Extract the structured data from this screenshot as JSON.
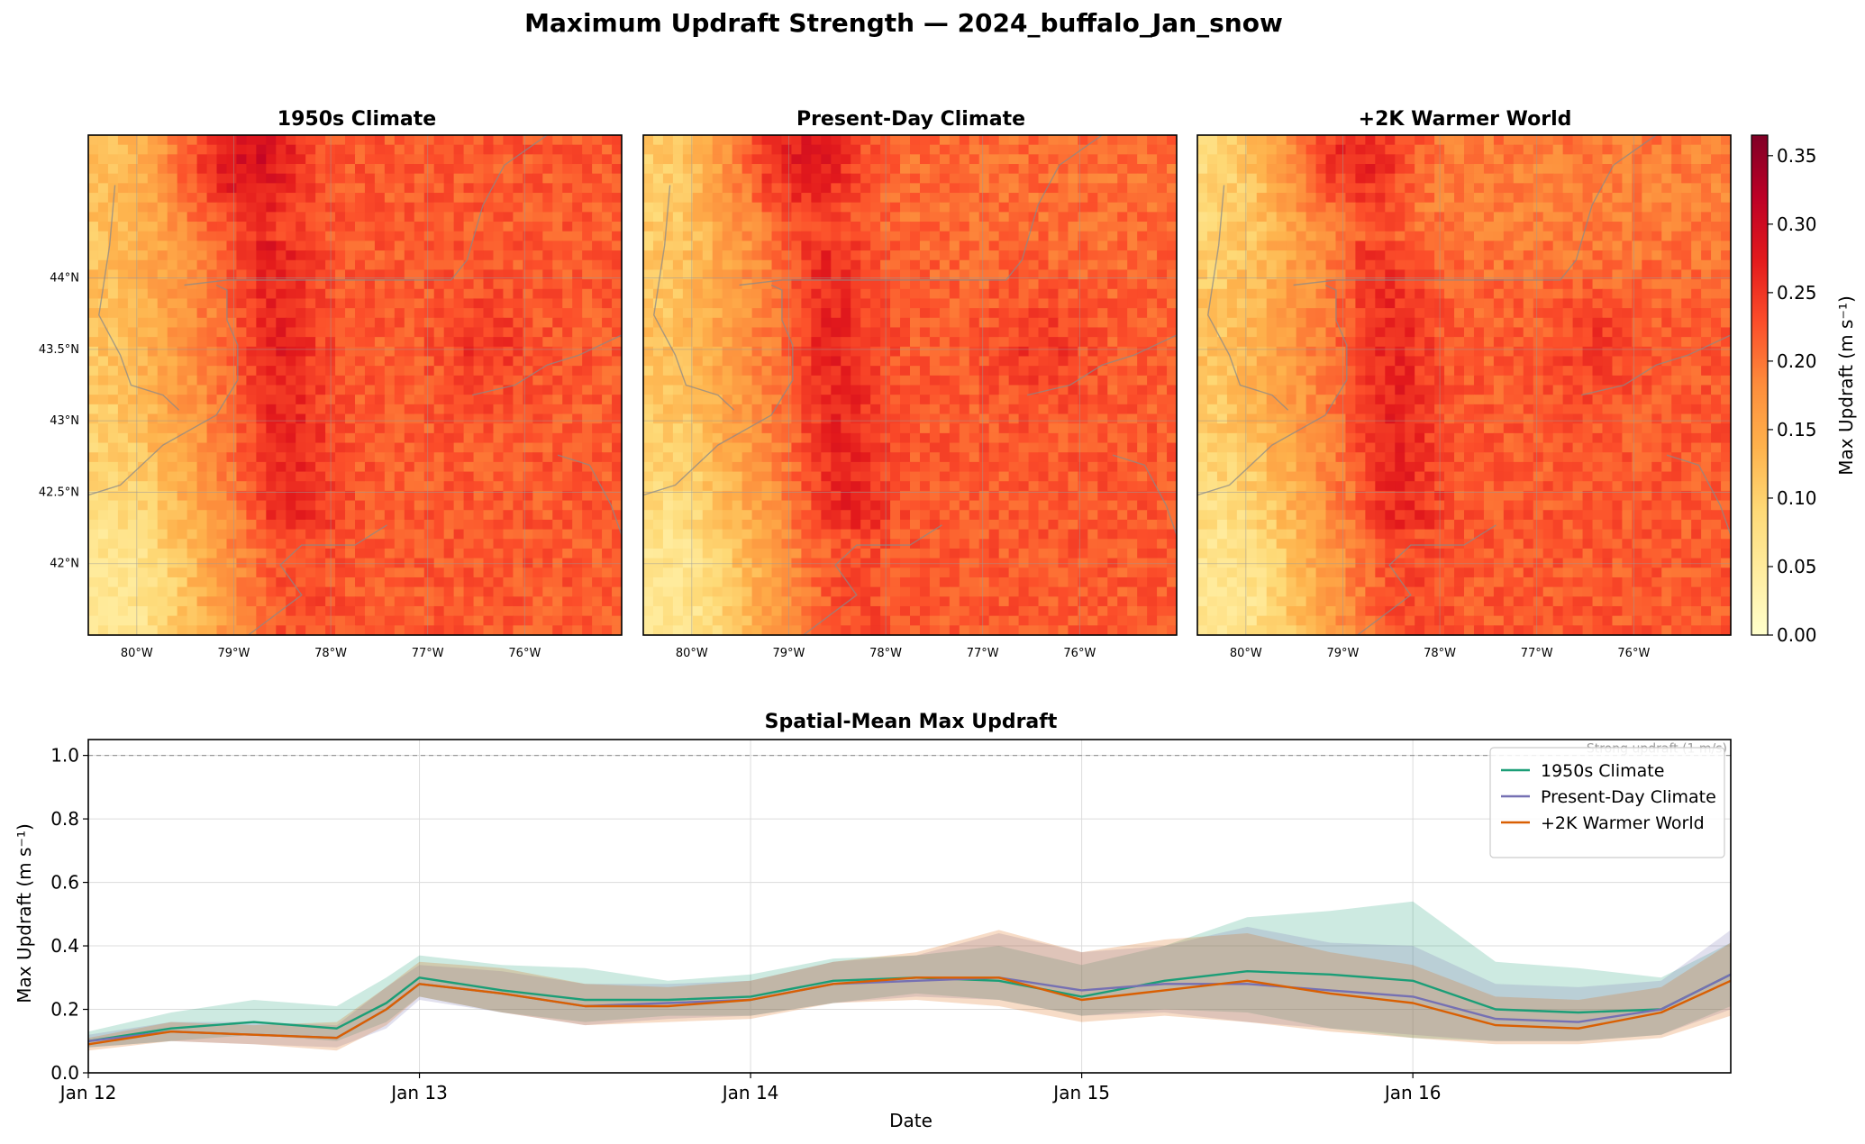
{
  "figure": {
    "title": "Maximum Updraft Strength — 2024_buffalo_Jan_snow"
  },
  "maps": {
    "panels": [
      {
        "title": "1950s Climate",
        "variant": 0
      },
      {
        "title": "Present-Day Climate",
        "variant": 1
      },
      {
        "title": "+2K Warmer World",
        "variant": 2
      }
    ],
    "lon_ticks": [
      "80°W",
      "79°W",
      "78°W",
      "77°W",
      "76°W"
    ],
    "lon_tick_values": [
      -80,
      -79,
      -78,
      -77,
      -76
    ],
    "lat_ticks": [
      "44°N",
      "43.5°N",
      "43°N",
      "42.5°N",
      "42°N"
    ],
    "lat_tick_values": [
      44,
      43.5,
      43,
      42.5,
      42
    ],
    "lon_range": [
      -80.5,
      -75.0
    ],
    "lat_range": [
      41.5,
      45.0
    ],
    "colorbar": {
      "label": "Max Updraft (m s⁻¹)",
      "ticks": [
        "0.00",
        "0.05",
        "0.10",
        "0.15",
        "0.20",
        "0.25",
        "0.30",
        "0.35"
      ],
      "tick_values": [
        0,
        0.05,
        0.1,
        0.15,
        0.2,
        0.25,
        0.3,
        0.35
      ],
      "range": [
        0,
        0.365
      ],
      "colormap": "YlOrRd",
      "colors": [
        "#ffffcc",
        "#ffeda0",
        "#fed976",
        "#feb24c",
        "#fd8d3c",
        "#fc4e2a",
        "#e31a1c",
        "#bd0026",
        "#800026"
      ]
    }
  },
  "chart_data": {
    "type": "line",
    "title": "Spatial-Mean Max Updraft",
    "xlabel": "Date",
    "ylabel": "Max Updraft (m s⁻¹)",
    "x_ticks": [
      "Jan 12",
      "Jan 13",
      "Jan 14",
      "Jan 15",
      "Jan 16"
    ],
    "x_tick_values": [
      0,
      1,
      2,
      3,
      4
    ],
    "xlim": [
      0,
      4.96
    ],
    "ylim": [
      0,
      1.05
    ],
    "y_ticks": [
      "0.0",
      "0.2",
      "0.4",
      "0.6",
      "0.8",
      "1.0"
    ],
    "y_tick_values": [
      0,
      0.2,
      0.4,
      0.6,
      0.8,
      1.0
    ],
    "grid": true,
    "legend": "upper-right",
    "reference_line": {
      "y": 1.0,
      "label": "Strong updraft (1 m/s)"
    },
    "x": [
      0,
      0.25,
      0.5,
      0.75,
      0.9,
      1.0,
      1.25,
      1.5,
      1.75,
      2.0,
      2.25,
      2.5,
      2.75,
      3.0,
      3.25,
      3.5,
      3.75,
      4.0,
      4.25,
      4.5,
      4.75,
      4.96
    ],
    "series": [
      {
        "name": "1950s Climate",
        "color": "#1b9e77",
        "values": [
          0.1,
          0.14,
          0.16,
          0.14,
          0.22,
          0.3,
          0.26,
          0.23,
          0.23,
          0.24,
          0.29,
          0.3,
          0.29,
          0.24,
          0.29,
          0.32,
          0.31,
          0.29,
          0.2,
          0.19,
          0.2,
          0.31
        ],
        "lower": [
          0.08,
          0.1,
          0.12,
          0.1,
          0.16,
          0.24,
          0.19,
          0.16,
          0.18,
          0.18,
          0.22,
          0.25,
          0.23,
          0.18,
          0.2,
          0.19,
          0.14,
          0.11,
          0.1,
          0.1,
          0.12,
          0.21
        ],
        "upper": [
          0.13,
          0.19,
          0.23,
          0.21,
          0.3,
          0.37,
          0.34,
          0.33,
          0.29,
          0.31,
          0.36,
          0.37,
          0.4,
          0.34,
          0.4,
          0.49,
          0.51,
          0.54,
          0.35,
          0.33,
          0.3,
          0.41
        ]
      },
      {
        "name": "Present-Day Climate",
        "color": "#7570b3",
        "values": [
          0.1,
          0.13,
          0.12,
          0.11,
          0.2,
          0.28,
          0.25,
          0.21,
          0.22,
          0.23,
          0.28,
          0.29,
          0.3,
          0.26,
          0.28,
          0.28,
          0.26,
          0.24,
          0.17,
          0.16,
          0.2,
          0.31
        ],
        "lower": [
          0.08,
          0.1,
          0.09,
          0.08,
          0.14,
          0.23,
          0.19,
          0.15,
          0.17,
          0.18,
          0.22,
          0.24,
          0.23,
          0.18,
          0.19,
          0.16,
          0.14,
          0.12,
          0.1,
          0.1,
          0.12,
          0.2
        ],
        "upper": [
          0.12,
          0.16,
          0.16,
          0.15,
          0.27,
          0.34,
          0.32,
          0.28,
          0.28,
          0.29,
          0.35,
          0.37,
          0.44,
          0.38,
          0.4,
          0.46,
          0.41,
          0.4,
          0.28,
          0.27,
          0.29,
          0.45
        ]
      },
      {
        "name": "+2K Warmer World",
        "color": "#d95f02",
        "values": [
          0.09,
          0.13,
          0.12,
          0.11,
          0.2,
          0.28,
          0.25,
          0.21,
          0.21,
          0.23,
          0.28,
          0.3,
          0.3,
          0.23,
          0.26,
          0.29,
          0.25,
          0.22,
          0.15,
          0.14,
          0.19,
          0.29
        ],
        "lower": [
          0.07,
          0.1,
          0.09,
          0.07,
          0.15,
          0.24,
          0.19,
          0.15,
          0.16,
          0.17,
          0.22,
          0.23,
          0.21,
          0.16,
          0.18,
          0.16,
          0.13,
          0.11,
          0.09,
          0.09,
          0.11,
          0.18
        ],
        "upper": [
          0.11,
          0.16,
          0.15,
          0.16,
          0.27,
          0.35,
          0.33,
          0.28,
          0.27,
          0.29,
          0.35,
          0.38,
          0.45,
          0.38,
          0.42,
          0.44,
          0.38,
          0.34,
          0.24,
          0.23,
          0.27,
          0.41
        ]
      }
    ]
  }
}
